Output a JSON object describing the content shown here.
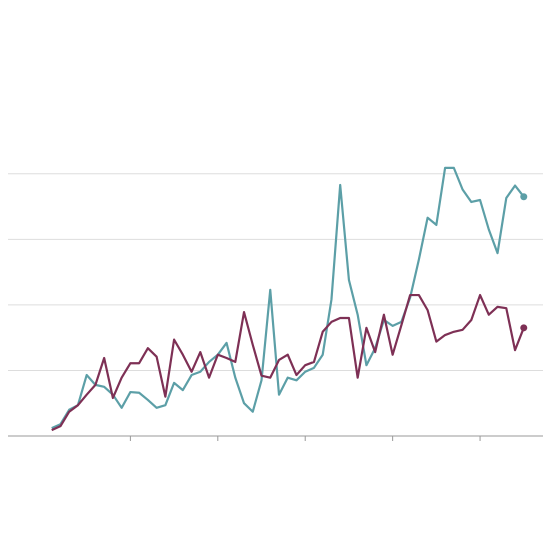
{
  "chart_data": {
    "type": "line",
    "x": [
      1,
      2,
      3,
      4,
      5,
      6,
      7,
      8,
      9,
      10,
      11,
      12,
      13,
      14,
      15,
      16,
      17,
      18,
      19,
      20,
      21,
      22,
      23,
      24,
      25,
      26,
      27,
      28,
      29,
      30,
      31,
      32,
      33,
      34,
      35,
      36,
      37,
      38,
      39,
      40,
      41,
      42,
      43,
      44,
      45,
      46,
      47,
      48,
      49,
      50,
      51,
      52,
      53,
      54,
      55
    ],
    "series": [
      {
        "color": "#5c9fa7",
        "values": [
          0.12,
          0.18,
          0.4,
          0.47,
          0.93,
          0.78,
          0.75,
          0.63,
          0.43,
          0.67,
          0.66,
          0.55,
          0.43,
          0.47,
          0.81,
          0.7,
          0.93,
          0.98,
          1.13,
          1.24,
          1.42,
          0.89,
          0.5,
          0.37,
          0.85,
          2.23,
          0.63,
          0.89,
          0.85,
          0.98,
          1.04,
          1.24,
          2.08,
          3.83,
          2.38,
          1.85,
          1.08,
          1.34,
          1.77,
          1.68,
          1.74,
          2.11,
          2.69,
          3.33,
          3.22,
          4.09,
          4.09,
          3.76,
          3.57,
          3.6,
          3.15,
          2.79,
          3.63,
          3.82,
          3.65
        ]
      },
      {
        "color": "#7e3055",
        "values": [
          0.09,
          0.15,
          0.37,
          0.47,
          0.63,
          0.78,
          1.19,
          0.58,
          0.89,
          1.11,
          1.11,
          1.34,
          1.21,
          0.6,
          1.47,
          1.24,
          0.98,
          1.28,
          0.89,
          1.24,
          1.19,
          1.13,
          1.89,
          1.39,
          0.92,
          0.89,
          1.16,
          1.24,
          0.93,
          1.08,
          1.13,
          1.59,
          1.74,
          1.8,
          1.8,
          0.89,
          1.65,
          1.28,
          1.85,
          1.24,
          1.69,
          2.15,
          2.15,
          1.92,
          1.44,
          1.54,
          1.59,
          1.62,
          1.77,
          2.15,
          1.85,
          1.97,
          1.95,
          1.31,
          1.65
        ]
      }
    ],
    "xlim": [
      -4,
      57.2
    ],
    "xticks": [
      10,
      20,
      30,
      40,
      50
    ],
    "ylim": [
      0,
      4.5
    ],
    "yticks": [
      0,
      1,
      2,
      3,
      4
    ],
    "grid": true
  }
}
